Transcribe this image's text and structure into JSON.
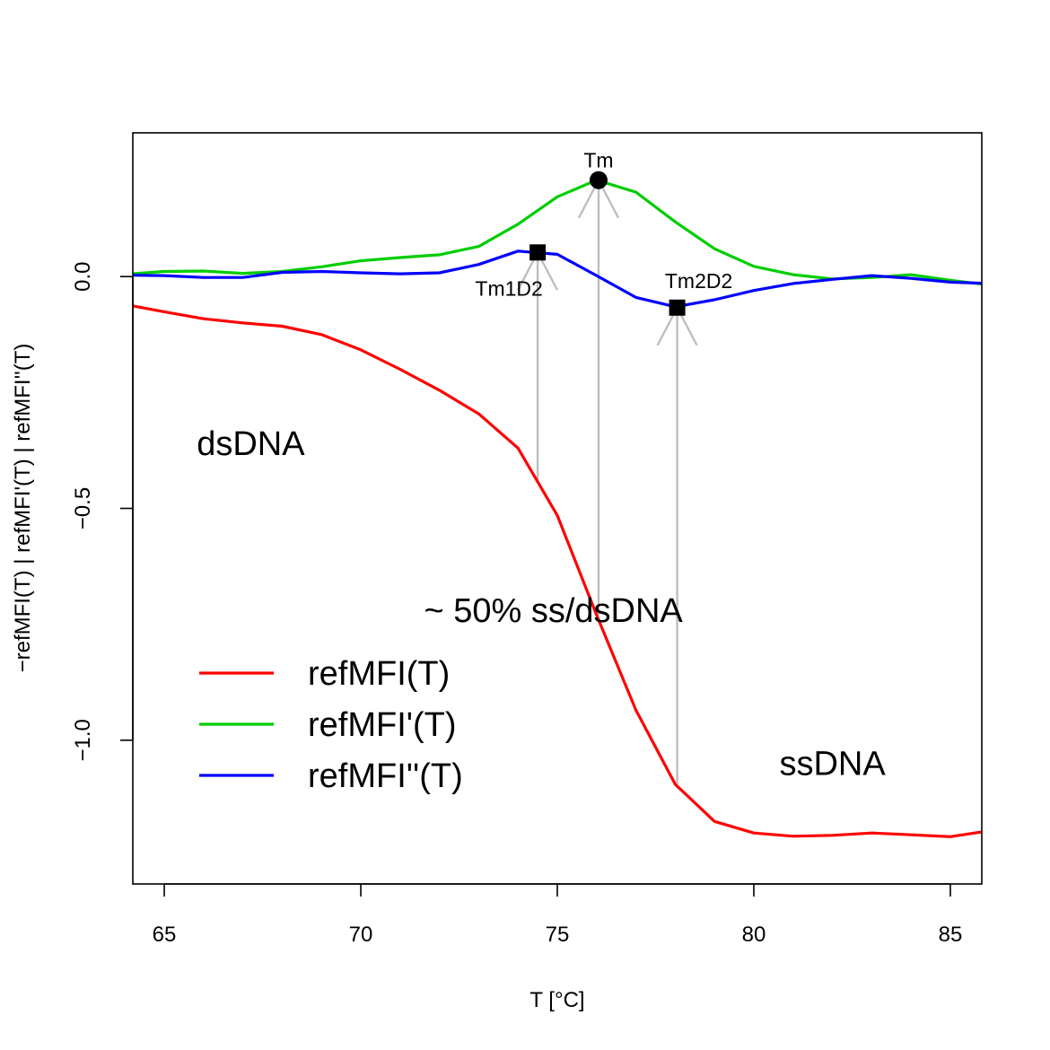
{
  "chart_data": {
    "type": "line",
    "xlabel": "T [°C]",
    "ylabel": "−refMFI(T) | refMFI'(T) | refMFI''(T)",
    "xlim": [
      64.2,
      85.8
    ],
    "ylim": [
      -1.31,
      0.31
    ],
    "x_ticks": [
      "65",
      "70",
      "75",
      "80",
      "85"
    ],
    "y_ticks": [
      "−1.0",
      "−0.5",
      "0.0"
    ],
    "grid": false,
    "legend_position": "bottom-left",
    "x": [
      64,
      65,
      66,
      67,
      68,
      69,
      70,
      71,
      72,
      73,
      74,
      75,
      76,
      77,
      78,
      79,
      80,
      81,
      82,
      83,
      84,
      85,
      86
    ],
    "series": [
      {
        "name": "refMFI(T)",
        "color": "#ff0000",
        "values": [
          -0.06,
          -0.076,
          -0.091,
          -0.1,
          -0.107,
          -0.125,
          -0.158,
          -0.2,
          -0.245,
          -0.296,
          -0.37,
          -0.515,
          -0.73,
          -0.935,
          -1.095,
          -1.175,
          -1.2,
          -1.207,
          -1.205,
          -1.2,
          -1.204,
          -1.208,
          -1.195
        ]
      },
      {
        "name": "refMFI'(T)",
        "color": "#00cd00",
        "values": [
          0.005,
          0.011,
          0.012,
          0.007,
          0.011,
          0.021,
          0.034,
          0.041,
          0.047,
          0.065,
          0.113,
          0.172,
          0.208,
          0.182,
          0.118,
          0.06,
          0.022,
          0.004,
          -0.005,
          -0.002,
          0.004,
          -0.008,
          -0.018
        ]
      },
      {
        "name": "refMFI''(T)",
        "color": "#0000ff",
        "values": [
          0.003,
          0.002,
          -0.002,
          -0.002,
          0.009,
          0.011,
          0.008,
          0.006,
          0.008,
          0.026,
          0.055,
          0.048,
          0.002,
          -0.045,
          -0.065,
          -0.05,
          -0.03,
          -0.015,
          -0.006,
          0.002,
          -0.004,
          -0.012,
          -0.015
        ]
      }
    ],
    "markers": [
      {
        "label": "Tm",
        "shape": "circle",
        "x": 76.05,
        "y": 0.208,
        "arrow_from": -0.73
      },
      {
        "label": "Tm1D2",
        "shape": "square",
        "x": 74.5,
        "y": 0.052,
        "arrow_from": -0.445
      },
      {
        "label": "Tm2D2",
        "shape": "square",
        "x": 78.05,
        "y": -0.067,
        "arrow_from": -1.095
      }
    ],
    "annotations": [
      {
        "text": "dsDNA",
        "x": 67.2,
        "y": -0.36
      },
      {
        "text": "~ 50% ss/dsDNA",
        "x": 74.9,
        "y": -0.72
      },
      {
        "text": "ssDNA",
        "x": 82.0,
        "y": -1.05
      }
    ],
    "arrow_color": "#bebebe"
  }
}
